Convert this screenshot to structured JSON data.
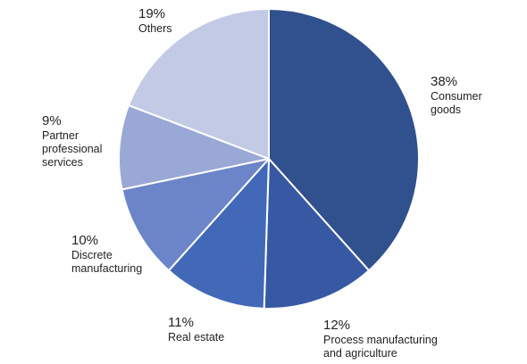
{
  "chart_data": {
    "type": "pie",
    "start_angle_deg": 0,
    "direction": "clockwise",
    "slices": [
      {
        "value": 38,
        "pct_label": "38%",
        "label_lines": [
          "Consumer",
          "goods"
        ],
        "color": "#30508E"
      },
      {
        "value": 12,
        "pct_label": "12%",
        "label_lines": [
          "Process manufacturing",
          "and agriculture"
        ],
        "color": "#3758A3"
      },
      {
        "value": 11,
        "pct_label": "11%",
        "label_lines": [
          "Real estate"
        ],
        "color": "#4169B8"
      },
      {
        "value": 10,
        "pct_label": "10%",
        "label_lines": [
          "Discrete",
          "manufacturing"
        ],
        "color": "#6B85C8"
      },
      {
        "value": 9,
        "pct_label": "9%",
        "label_lines": [
          "Partner",
          "professional",
          "services"
        ],
        "color": "#9AA8D6"
      },
      {
        "value": 19,
        "pct_label": "19%",
        "label_lines": [
          "Others"
        ],
        "color": "#C3CAE6"
      }
    ]
  }
}
